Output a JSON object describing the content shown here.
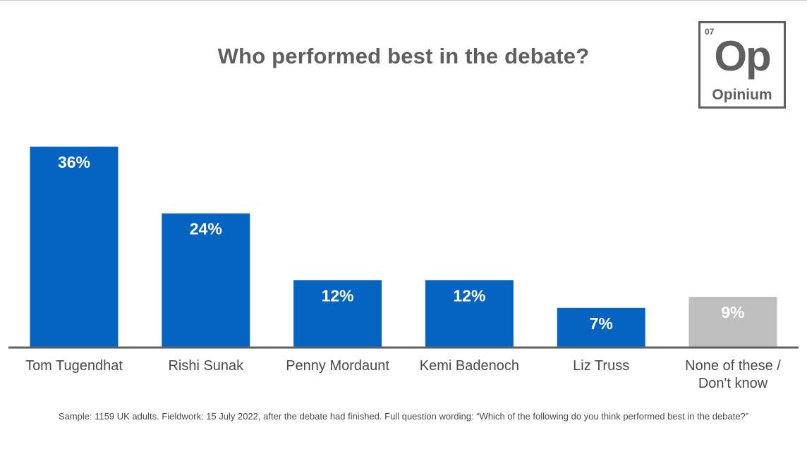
{
  "title": "Who performed best in the debate?",
  "logo": {
    "number": "07",
    "symbol": "Op",
    "name": "Opinium"
  },
  "footnote": "Sample: 1159 UK adults. Fieldwork: 15 July 2022, after the debate had finished. Full question wording: “Which of the following do you think performed best in the debate?”",
  "colors": {
    "primary_bar": "#0563c1",
    "none_bar": "#bfbfbf",
    "axis": "#5e6060",
    "label_text": "#4a4a4a",
    "value_text": "#ffffff"
  },
  "chart_data": {
    "type": "bar",
    "title": "Who performed best in the debate?",
    "categories": [
      [
        "Tom Tugendhat"
      ],
      [
        "Rishi Sunak"
      ],
      [
        "Penny Mordaunt"
      ],
      [
        "Kemi Badenoch"
      ],
      [
        "Liz Truss"
      ],
      [
        "None of these /",
        "Don't know"
      ]
    ],
    "values": [
      36,
      24,
      12,
      12,
      7,
      9
    ],
    "data_labels": [
      "36%",
      "24%",
      "12%",
      "12%",
      "7%",
      "9%"
    ],
    "bar_colors": [
      "#0563c1",
      "#0563c1",
      "#0563c1",
      "#0563c1",
      "#0563c1",
      "#bfbfbf"
    ],
    "ylim": [
      0,
      36
    ],
    "grid": false,
    "legend": "none",
    "xlabel": "",
    "ylabel": ""
  }
}
